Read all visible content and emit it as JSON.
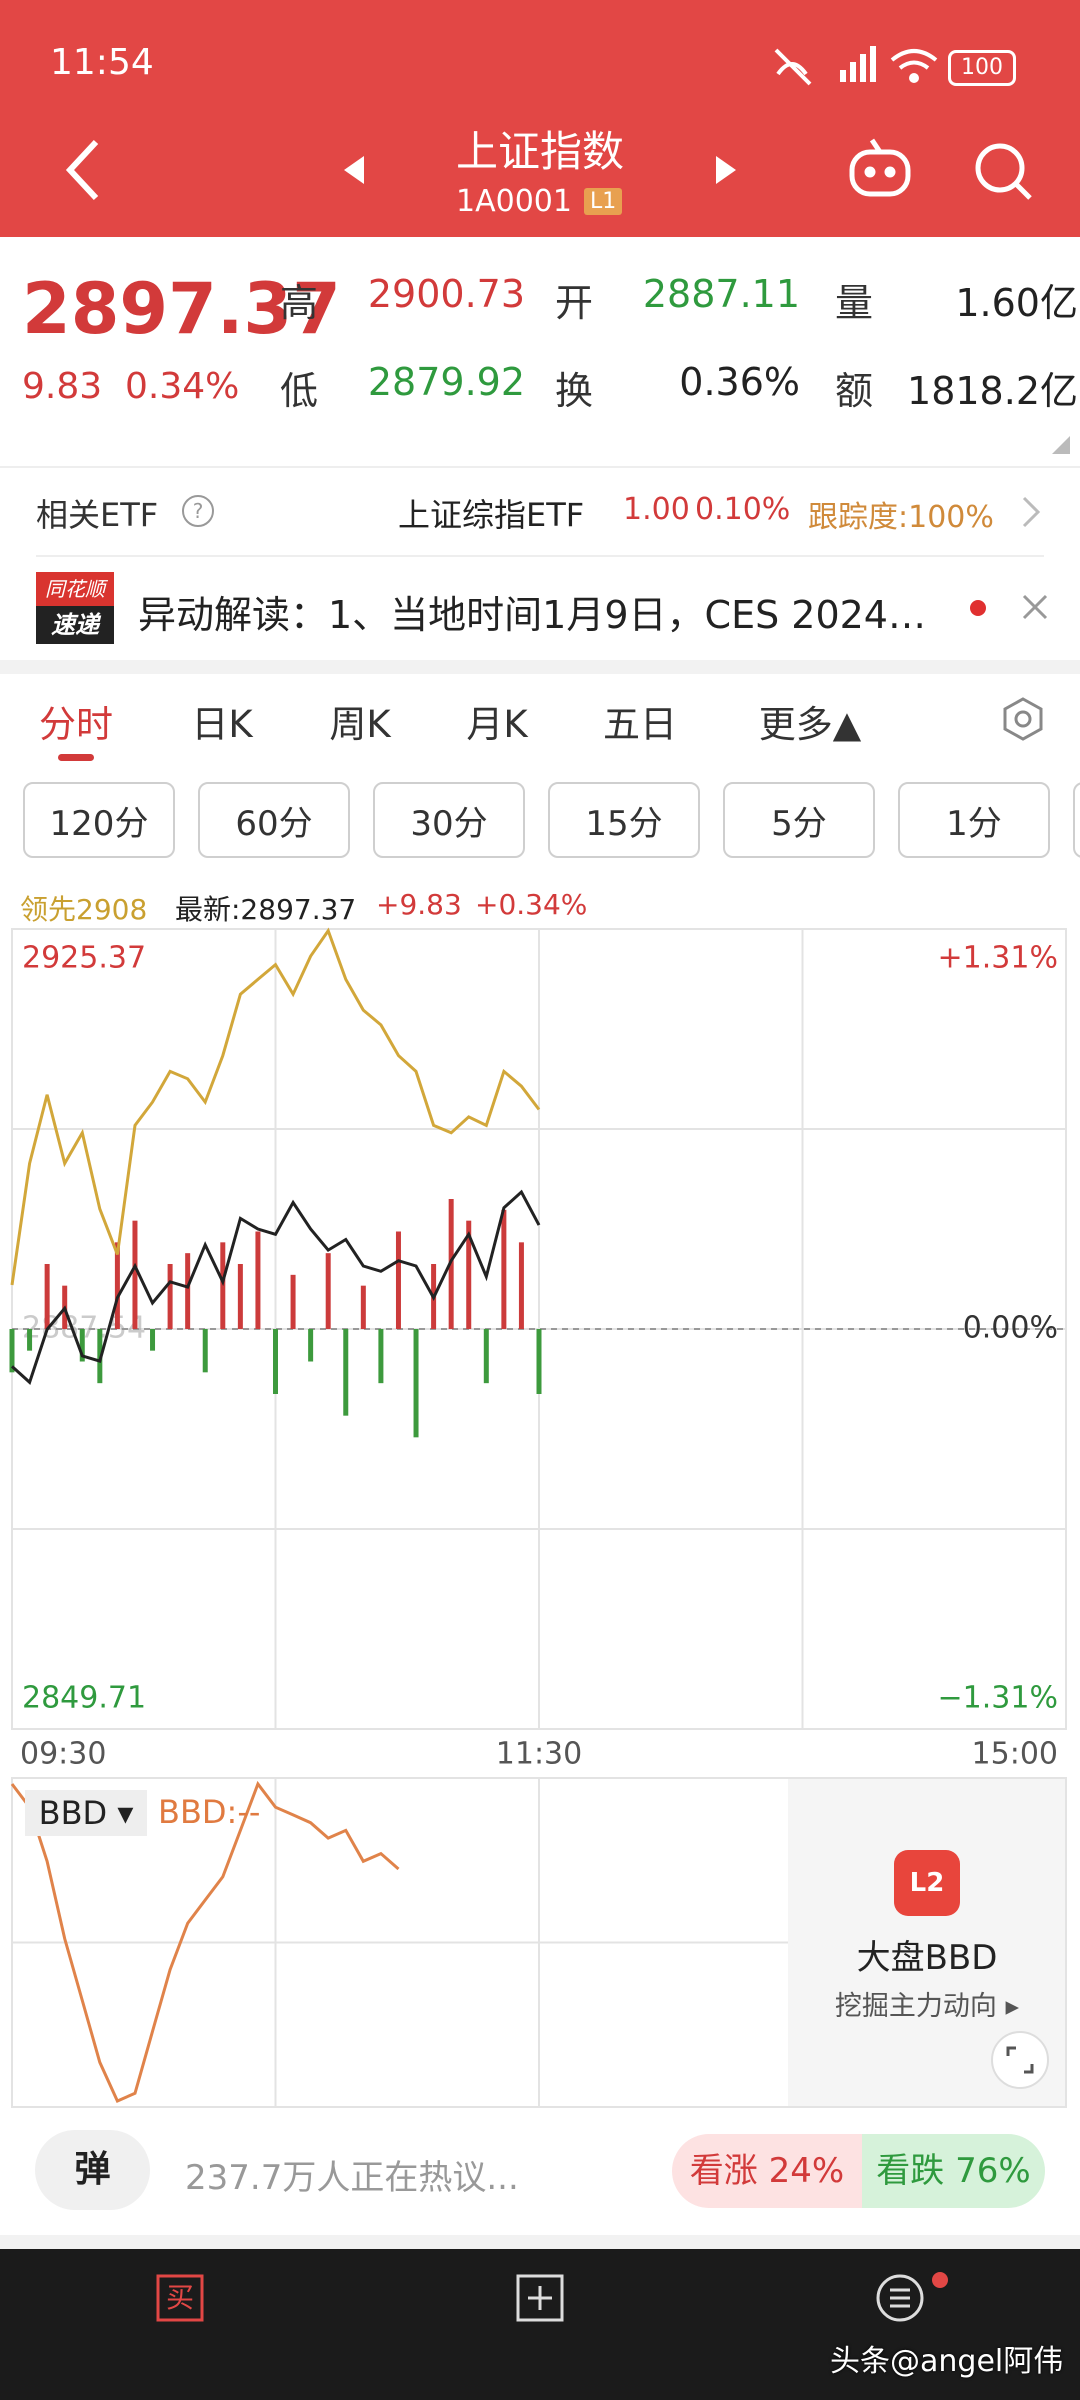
{
  "status_bar": {
    "time": "11:54",
    "battery": "100"
  },
  "header": {
    "title": "上证指数",
    "code": "1A0001",
    "level": "L1"
  },
  "quote": {
    "price": "2897.37",
    "change": "9.83",
    "change_pct": "0.34%",
    "stats": [
      {
        "label": "高",
        "value": "2900.73",
        "color": "#d23a3a"
      },
      {
        "label": "开",
        "value": "2887.11",
        "color": "#2f9a3e"
      },
      {
        "label": "量",
        "value": "1.60亿",
        "color": "#222222"
      },
      {
        "label": "低",
        "value": "2879.92",
        "color": "#2f9a3e"
      },
      {
        "label": "换",
        "value": "0.36%",
        "color": "#222222"
      },
      {
        "label": "额",
        "value": "1818.2亿",
        "color": "#222222"
      }
    ]
  },
  "etf": {
    "label": "相关ETF",
    "help": "?",
    "name": "上证综指ETF",
    "price": "1.00",
    "pct": "0.10%",
    "tracking": "跟踪度:100%"
  },
  "news": {
    "logo_top": "同花顺",
    "logo_bottom": "速递",
    "text": "异动解读：1、当地时间1月9日，CES 2024…"
  },
  "tabs": [
    "分时",
    "日K",
    "周K",
    "月K",
    "五日",
    "更多▲"
  ],
  "periods": [
    "120分",
    "60分",
    "30分",
    "15分",
    "5分",
    "1分"
  ],
  "legend": {
    "leading": "领先2908",
    "latest": "最新:2897.37",
    "change": "+9.83",
    "pct": "+0.34%"
  },
  "chart_data": {
    "type": "line",
    "x": [
      0,
      4,
      8,
      12,
      16,
      20,
      24,
      28,
      32,
      36,
      40,
      44,
      48,
      52,
      56,
      60,
      64,
      68,
      72,
      76,
      80,
      84,
      88,
      92,
      96,
      100,
      104,
      108,
      112,
      116,
      120
    ],
    "xlim": [
      0,
      240
    ],
    "xticks": [
      {
        "value": 0,
        "label": "09:30"
      },
      {
        "value": 120,
        "label": "11:30"
      },
      {
        "value": 240,
        "label": "15:00"
      }
    ],
    "ylim": [
      2849.71,
      2925.37
    ],
    "yticks": [
      2925.37,
      2887.54,
      2849.71
    ],
    "y2lim": [
      -1.31,
      1.31
    ],
    "y2ticks": [
      {
        "value": 1.31,
        "label": "+1.31%"
      },
      {
        "value": 0,
        "label": "0.00%"
      },
      {
        "value": -1.31,
        "label": "−1.31%"
      }
    ],
    "series": [
      {
        "color": "#222222",
        "values": [
          2884.0,
          2882.5,
          2887.5,
          2889.5,
          2885.0,
          2884.5,
          2890.5,
          2893.5,
          2890.0,
          2892.0,
          2891.5,
          2895.5,
          2892.0,
          2898.0,
          2897.0,
          2896.5,
          2899.5,
          2897.0,
          2895.0,
          2896.0,
          2893.5,
          2893.0,
          2894.0,
          2893.5,
          2890.5,
          2894.0,
          2896.5,
          2892.5,
          2899.0,
          2900.5,
          2897.37
        ]
      },
      {
        "color": "#d2a73a",
        "values": [
          2891.7,
          2903.2,
          2909.7,
          2903.2,
          2906.1,
          2898.9,
          2894.6,
          2906.8,
          2909.0,
          2911.9,
          2911.2,
          2909.0,
          2913.4,
          2919.2,
          2920.6,
          2922.0,
          2919.2,
          2922.8,
          2925.2,
          2920.6,
          2917.7,
          2916.3,
          2913.4,
          2911.9,
          2906.8,
          2906.1,
          2907.6,
          2906.8,
          2911.9,
          2910.5,
          2908.3
        ]
      }
    ],
    "volume": {
      "up_color": "#cc3b3b",
      "down_color": "#3d9a3d",
      "values": [
        -20,
        -10,
        30,
        20,
        -15,
        -25,
        40,
        50,
        -10,
        30,
        35,
        -20,
        40,
        30,
        45,
        -30,
        25,
        -15,
        35,
        -40,
        20,
        -25,
        45,
        -50,
        30,
        60,
        50,
        -25,
        55,
        40,
        -30
      ]
    }
  },
  "bbd": {
    "label": "BBD ▾",
    "value_label": "BBD:--",
    "color": "#e0834a",
    "x": [
      0,
      4,
      8,
      12,
      16,
      20,
      24,
      28,
      32,
      36,
      40,
      44,
      48,
      52,
      56,
      60,
      64,
      68,
      72,
      76,
      80,
      84,
      88
    ],
    "values": [
      -10,
      -25,
      -60,
      -110,
      -150,
      -190,
      -215,
      -210,
      -170,
      -130,
      -100,
      -85,
      -70,
      -40,
      -10,
      -25,
      -30,
      -35,
      -45,
      -40,
      -60,
      -55,
      -65
    ],
    "promo_icon": "L2",
    "promo_title": "大盘BBD",
    "promo_sub": "挖掘主力动向 ▸"
  },
  "discussion": {
    "button": "弹",
    "text": "237.7万人正在热议...",
    "up": "看涨 24%",
    "down": "看跌 76%"
  },
  "nav": [
    "买指数",
    "加自选",
    "功能"
  ],
  "watermark": "头条@angel阿伟"
}
